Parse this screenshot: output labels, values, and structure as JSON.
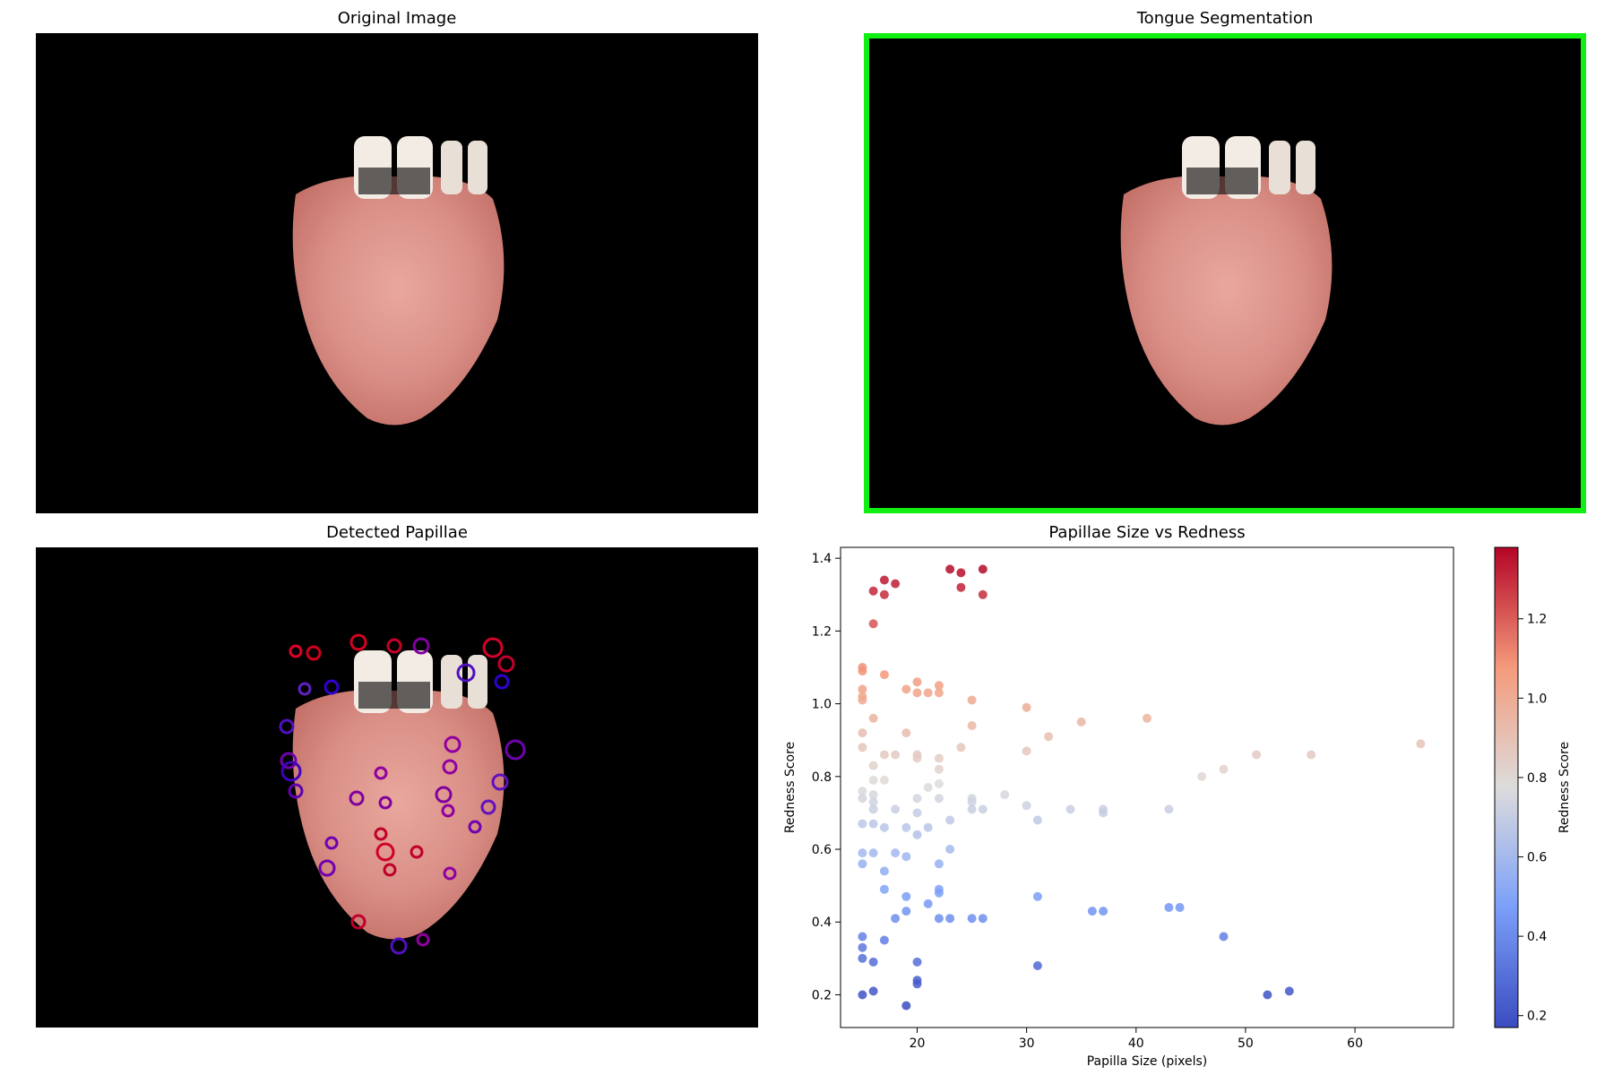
{
  "panels": {
    "original": {
      "title": "Original Image"
    },
    "segmentation": {
      "title": "Tongue Segmentation",
      "frame_color": "#11ee11"
    },
    "papillae": {
      "title": "Detected Papillae"
    },
    "scatter": {
      "title": "Papillae Size vs Redness"
    }
  },
  "chart_data": {
    "type": "scatter",
    "title": "Papillae Size vs Redness",
    "xlabel": "Papilla Size (pixels)",
    "ylabel": "Redness Score",
    "xlim": [
      13,
      69
    ],
    "ylim": [
      0.11,
      1.43
    ],
    "xticks": [
      20,
      30,
      40,
      50,
      60
    ],
    "yticks": [
      0.2,
      0.4,
      0.6,
      0.8,
      1.0,
      1.2,
      1.4
    ],
    "colormap": "coolwarm",
    "color_range": [
      0.17,
      1.38
    ],
    "colorbar": {
      "label": "Redness Score",
      "ticks": [
        0.2,
        0.4,
        0.6,
        0.8,
        1.0,
        1.2
      ]
    },
    "grid": false,
    "points": [
      [
        16,
        1.31
      ],
      [
        17,
        1.34
      ],
      [
        17,
        1.3
      ],
      [
        18,
        1.33
      ],
      [
        23,
        1.37
      ],
      [
        24,
        1.36
      ],
      [
        24,
        1.32
      ],
      [
        26,
        1.37
      ],
      [
        26,
        1.3
      ],
      [
        16,
        1.22
      ],
      [
        15,
        1.1
      ],
      [
        15,
        1.09
      ],
      [
        15,
        1.04
      ],
      [
        15,
        1.02
      ],
      [
        15,
        1.01
      ],
      [
        17,
        1.08
      ],
      [
        16,
        0.96
      ],
      [
        19,
        1.04
      ],
      [
        20,
        1.06
      ],
      [
        20,
        1.03
      ],
      [
        21,
        1.03
      ],
      [
        22,
        1.05
      ],
      [
        22,
        1.03
      ],
      [
        25,
        1.01
      ],
      [
        30,
        0.99
      ],
      [
        35,
        0.95
      ],
      [
        41,
        0.96
      ],
      [
        25,
        0.94
      ],
      [
        32,
        0.91
      ],
      [
        15,
        0.92
      ],
      [
        19,
        0.92
      ],
      [
        15,
        0.88
      ],
      [
        17,
        0.86
      ],
      [
        18,
        0.86
      ],
      [
        20,
        0.86
      ],
      [
        20,
        0.85
      ],
      [
        22,
        0.85
      ],
      [
        24,
        0.88
      ],
      [
        30,
        0.87
      ],
      [
        16,
        0.83
      ],
      [
        22,
        0.82
      ],
      [
        16,
        0.79
      ],
      [
        17,
        0.79
      ],
      [
        22,
        0.78
      ],
      [
        21,
        0.77
      ],
      [
        28,
        0.75
      ],
      [
        46,
        0.8
      ],
      [
        48,
        0.82
      ],
      [
        51,
        0.86
      ],
      [
        56,
        0.86
      ],
      [
        66,
        0.89
      ],
      [
        15,
        0.76
      ],
      [
        15,
        0.74
      ],
      [
        16,
        0.75
      ],
      [
        16,
        0.73
      ],
      [
        16,
        0.71
      ],
      [
        18,
        0.71
      ],
      [
        20,
        0.74
      ],
      [
        20,
        0.7
      ],
      [
        22,
        0.74
      ],
      [
        25,
        0.74
      ],
      [
        25,
        0.73
      ],
      [
        25,
        0.71
      ],
      [
        26,
        0.71
      ],
      [
        30,
        0.72
      ],
      [
        34,
        0.71
      ],
      [
        37,
        0.71
      ],
      [
        37,
        0.7
      ],
      [
        43,
        0.71
      ],
      [
        31,
        0.68
      ],
      [
        23,
        0.68
      ],
      [
        15,
        0.67
      ],
      [
        16,
        0.67
      ],
      [
        17,
        0.66
      ],
      [
        19,
        0.66
      ],
      [
        21,
        0.66
      ],
      [
        20,
        0.64
      ],
      [
        15,
        0.59
      ],
      [
        15,
        0.56
      ],
      [
        16,
        0.59
      ],
      [
        18,
        0.59
      ],
      [
        19,
        0.58
      ],
      [
        22,
        0.56
      ],
      [
        23,
        0.6
      ],
      [
        17,
        0.54
      ],
      [
        17,
        0.49
      ],
      [
        22,
        0.49
      ],
      [
        22,
        0.48
      ],
      [
        19,
        0.47
      ],
      [
        21,
        0.45
      ],
      [
        19,
        0.43
      ],
      [
        18,
        0.41
      ],
      [
        22,
        0.41
      ],
      [
        23,
        0.41
      ],
      [
        25,
        0.41
      ],
      [
        26,
        0.41
      ],
      [
        31,
        0.47
      ],
      [
        36,
        0.43
      ],
      [
        37,
        0.43
      ],
      [
        43,
        0.44
      ],
      [
        44,
        0.44
      ],
      [
        15,
        0.36
      ],
      [
        15,
        0.33
      ],
      [
        15,
        0.3
      ],
      [
        16,
        0.29
      ],
      [
        17,
        0.35
      ],
      [
        20,
        0.29
      ],
      [
        20,
        0.24
      ],
      [
        20,
        0.23
      ],
      [
        31,
        0.28
      ],
      [
        48,
        0.36
      ],
      [
        15,
        0.2
      ],
      [
        16,
        0.21
      ],
      [
        19,
        0.17
      ],
      [
        52,
        0.2
      ],
      [
        54,
        0.21
      ]
    ]
  }
}
